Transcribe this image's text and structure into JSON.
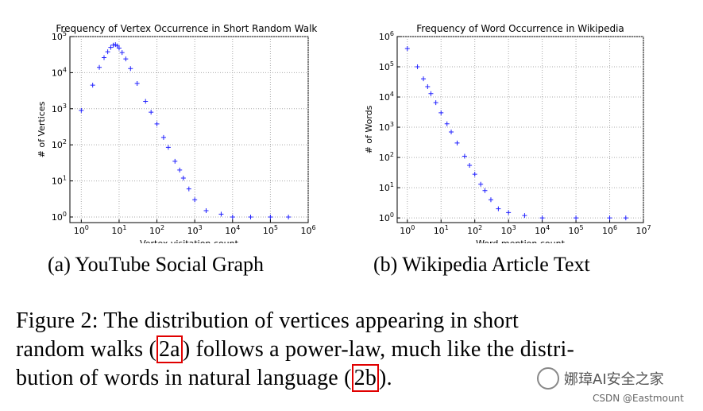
{
  "chart_data": [
    {
      "type": "scatter",
      "title": "Frequency of Vertex Occurrence in Short Random Walks",
      "xlabel": "Vertex visitation count",
      "ylabel": "# of Vertices",
      "xscale": "log",
      "yscale": "log",
      "xlim": [
        0.5,
        1000000
      ],
      "ylim": [
        0.7,
        100000
      ],
      "x_ticks": [
        "10^0",
        "10^1",
        "10^2",
        "10^3",
        "10^4",
        "10^5",
        "10^6"
      ],
      "y_ticks": [
        "10^0",
        "10^1",
        "10^2",
        "10^3",
        "10^4",
        "10^5"
      ],
      "marker": "+",
      "color": "#2020ff",
      "series": [
        {
          "points": [
            [
              1,
              900
            ],
            [
              2,
              4500
            ],
            [
              3,
              14000
            ],
            [
              4,
              26000
            ],
            [
              5,
              38000
            ],
            [
              6,
              50000
            ],
            [
              7,
              58000
            ],
            [
              8,
              60000
            ],
            [
              9,
              55000
            ],
            [
              10,
              48000
            ],
            [
              12,
              36000
            ],
            [
              15,
              24000
            ],
            [
              20,
              13000
            ],
            [
              30,
              5000
            ],
            [
              50,
              1600
            ],
            [
              70,
              800
            ],
            [
              100,
              380
            ],
            [
              150,
              160
            ],
            [
              200,
              85
            ],
            [
              300,
              35
            ],
            [
              400,
              20
            ],
            [
              500,
              12
            ],
            [
              700,
              6
            ],
            [
              1000,
              3
            ],
            [
              2000,
              1.5
            ],
            [
              5000,
              1.2
            ],
            [
              10000,
              1
            ],
            [
              30000,
              1
            ],
            [
              100000,
              1
            ],
            [
              300000,
              1
            ]
          ]
        }
      ]
    },
    {
      "type": "scatter",
      "title": "Frequency of Word Occurrence in Wikipedia",
      "xlabel": "Word mention count",
      "ylabel": "# of Words",
      "xscale": "log",
      "yscale": "log",
      "xlim": [
        0.5,
        10000000
      ],
      "ylim": [
        0.7,
        1000000
      ],
      "x_ticks": [
        "10^0",
        "10^1",
        "10^2",
        "10^3",
        "10^4",
        "10^5",
        "10^6",
        "10^7"
      ],
      "y_ticks": [
        "10^0",
        "10^1",
        "10^2",
        "10^3",
        "10^4",
        "10^5",
        "10^6"
      ],
      "marker": "+",
      "color": "#2020ff",
      "series": [
        {
          "points": [
            [
              1,
              400000
            ],
            [
              2,
              100000
            ],
            [
              3,
              40000
            ],
            [
              4,
              22000
            ],
            [
              5,
              13000
            ],
            [
              7,
              6500
            ],
            [
              10,
              3000
            ],
            [
              15,
              1300
            ],
            [
              20,
              700
            ],
            [
              30,
              300
            ],
            [
              50,
              110
            ],
            [
              70,
              55
            ],
            [
              100,
              28
            ],
            [
              150,
              13
            ],
            [
              200,
              8
            ],
            [
              300,
              4
            ],
            [
              500,
              2
            ],
            [
              1000,
              1.5
            ],
            [
              3000,
              1.2
            ],
            [
              10000,
              1
            ],
            [
              100000,
              1
            ],
            [
              1000000,
              1
            ],
            [
              3000000,
              1
            ]
          ]
        }
      ]
    }
  ],
  "captions": {
    "a": "(a) YouTube Social Graph",
    "b": "(b) Wikipedia Article Text"
  },
  "figure": {
    "line1": "Figure 2: The distribution of vertices appearing in short",
    "line2_pre": "random walks (",
    "ref_a": "2a",
    "line2_post": ") follows a power-law, much like the distri-",
    "line3_pre": "bution of words in natural language (",
    "ref_b": "2b",
    "line3_post": ").",
    "ref_color": "#e00000"
  },
  "watermark": {
    "text": "娜璋AI安全之家",
    "icon": "wechat-icon"
  },
  "credit": "CSDN @Eastmount"
}
